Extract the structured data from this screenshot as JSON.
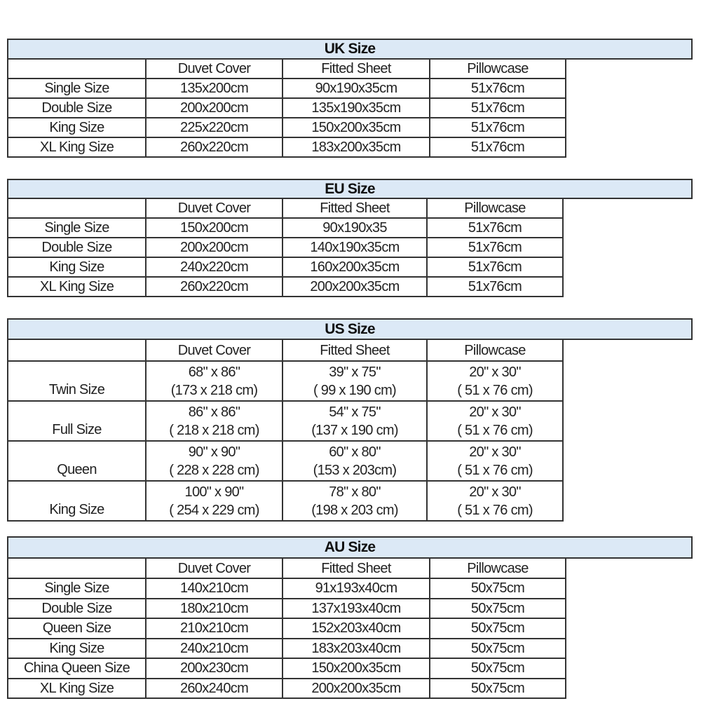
{
  "tables": [
    {
      "title": "UK Size",
      "headers": [
        "",
        "Duvet Cover",
        "Fitted Sheet",
        "Pillowcase"
      ],
      "rows": [
        [
          "Single Size",
          "135x200cm",
          "90x190x35cm",
          "51x76cm"
        ],
        [
          "Double Size",
          "200x200cm",
          "135x190x35cm",
          "51x76cm"
        ],
        [
          "King Size",
          "225x220cm",
          "150x200x35cm",
          "51x76cm"
        ],
        [
          "XL King Size",
          "260x220cm",
          "183x200x35cm",
          "51x76cm"
        ]
      ]
    },
    {
      "title": "EU Size",
      "headers": [
        "",
        "Duvet Cover",
        "Fitted Sheet",
        "Pillowcase"
      ],
      "rows": [
        [
          "Single Size",
          "150x200cm",
          "90x190x35",
          "51x76cm"
        ],
        [
          "Double Size",
          "200x200cm",
          "140x190x35cm",
          "51x76cm"
        ],
        [
          "King Size",
          "240x220cm",
          "160x200x35cm",
          "51x76cm"
        ],
        [
          "XL King Size",
          "260x220cm",
          "200x200x35cm",
          "51x76cm"
        ]
      ]
    },
    {
      "title": "US Size",
      "headers": [
        "",
        "Duvet Cover",
        "Fitted Sheet",
        "Pillowcase"
      ],
      "rows": [
        [
          "Twin Size",
          [
            "68\" x 86\"",
            "(173 x 218 cm)"
          ],
          [
            "39\" x 75\"",
            "( 99 x 190 cm)"
          ],
          [
            "20\" x 30\"",
            "( 51 x 76 cm)"
          ]
        ],
        [
          "Full Size",
          [
            "86\" x 86\"",
            "( 218 x 218 cm)"
          ],
          [
            "54\" x 75\"",
            "(137 x 190 cm)"
          ],
          [
            "20\" x 30\"",
            "( 51 x 76 cm)"
          ]
        ],
        [
          "Queen",
          [
            "90\"  x 90\"",
            "( 228 x 228 cm)"
          ],
          [
            "60\" x 80\"",
            "(153 x 203cm)"
          ],
          [
            "20\" x 30\"",
            "( 51 x 76 cm)"
          ]
        ],
        [
          "King Size",
          [
            "100\" x 90\"",
            "( 254 x 229 cm)"
          ],
          [
            "78\" x 80\"",
            "(198 x 203 cm)"
          ],
          [
            "20\" x 30\"",
            "( 51 x 76 cm)"
          ]
        ]
      ]
    },
    {
      "title": "AU Size",
      "headers": [
        "",
        "Duvet Cover",
        "Fitted Sheet",
        "Pillowcase"
      ],
      "rows": [
        [
          "Single Size",
          "140x210cm",
          "91x193x40cm",
          "50x75cm"
        ],
        [
          "Double Size",
          "180x210cm",
          "137x193x40cm",
          "50x75cm"
        ],
        [
          "Queen Size",
          "210x210cm",
          "152x203x40cm",
          "50x75cm"
        ],
        [
          "King Size",
          "240x210cm",
          "183x203x40cm",
          "50x75cm"
        ],
        [
          "China Queen Size",
          "200x230cm",
          "150x200x35cm",
          "50x75cm"
        ],
        [
          "XL King Size",
          "260x240cm",
          "200x200x35cm",
          "50x75cm"
        ]
      ]
    }
  ],
  "colors": {
    "title_bar": "#dce9f6",
    "border": "#333333"
  }
}
